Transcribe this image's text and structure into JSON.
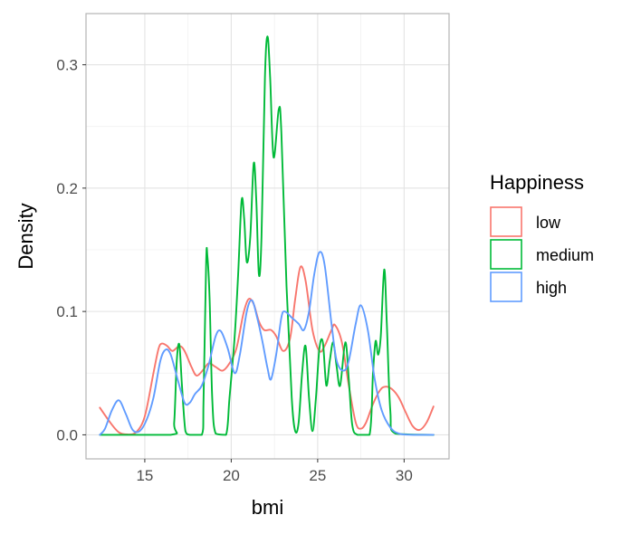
{
  "chart_data": {
    "type": "line",
    "xlabel": "bmi",
    "ylabel": "Density",
    "xlim": [
      11.6,
      32.6
    ],
    "ylim": [
      -0.0195,
      0.3415
    ],
    "x_ticks": [
      15,
      20,
      25,
      30
    ],
    "y_ticks": [
      0.0,
      0.1,
      0.2,
      0.3
    ],
    "x_tick_labels": [
      "15",
      "20",
      "25",
      "30"
    ],
    "y_tick_labels": [
      "0.0",
      "0.1",
      "0.2",
      "0.3"
    ],
    "grid": true,
    "legend": {
      "title": "Happiness",
      "position": "right"
    },
    "series": [
      {
        "name": "low",
        "color": "#F8766D",
        "points": [
          [
            12.4,
            0.022
          ],
          [
            13.0,
            0.01
          ],
          [
            13.5,
            0.002
          ],
          [
            14.0,
            0.0003
          ],
          [
            14.5,
            0.002
          ],
          [
            15.0,
            0.015
          ],
          [
            15.5,
            0.05
          ],
          [
            15.8,
            0.07
          ],
          [
            16.0,
            0.074
          ],
          [
            16.3,
            0.072
          ],
          [
            16.6,
            0.068
          ],
          [
            17.0,
            0.072
          ],
          [
            17.3,
            0.068
          ],
          [
            17.7,
            0.055
          ],
          [
            18.0,
            0.048
          ],
          [
            18.4,
            0.053
          ],
          [
            18.7,
            0.058
          ],
          [
            19.1,
            0.055
          ],
          [
            19.5,
            0.052
          ],
          [
            19.9,
            0.058
          ],
          [
            20.3,
            0.07
          ],
          [
            20.7,
            0.098
          ],
          [
            21.0,
            0.11
          ],
          [
            21.3,
            0.106
          ],
          [
            21.6,
            0.092
          ],
          [
            21.9,
            0.085
          ],
          [
            22.3,
            0.085
          ],
          [
            22.6,
            0.08
          ],
          [
            23.0,
            0.068
          ],
          [
            23.4,
            0.078
          ],
          [
            23.7,
            0.11
          ],
          [
            24.0,
            0.136
          ],
          [
            24.3,
            0.125
          ],
          [
            24.7,
            0.085
          ],
          [
            25.1,
            0.068
          ],
          [
            25.4,
            0.072
          ],
          [
            25.8,
            0.085
          ],
          [
            26.0,
            0.089
          ],
          [
            26.4,
            0.075
          ],
          [
            26.8,
            0.04
          ],
          [
            27.2,
            0.01
          ],
          [
            27.5,
            0.005
          ],
          [
            27.8,
            0.01
          ],
          [
            28.2,
            0.025
          ],
          [
            28.6,
            0.036
          ],
          [
            28.9,
            0.039
          ],
          [
            29.3,
            0.037
          ],
          [
            29.7,
            0.03
          ],
          [
            30.1,
            0.018
          ],
          [
            30.5,
            0.007
          ],
          [
            30.9,
            0.004
          ],
          [
            31.3,
            0.01
          ],
          [
            31.7,
            0.023
          ]
        ]
      },
      {
        "name": "medium",
        "color": "#00BA38",
        "points": [
          [
            12.4,
            0.0
          ],
          [
            16.5,
            0.0
          ],
          [
            16.7,
            0.01
          ],
          [
            16.85,
            0.06
          ],
          [
            17.0,
            0.073
          ],
          [
            17.15,
            0.04
          ],
          [
            17.35,
            0.003
          ],
          [
            17.6,
            0.0
          ],
          [
            18.3,
            0.0
          ],
          [
            18.4,
            0.03
          ],
          [
            18.55,
            0.14
          ],
          [
            18.62,
            0.145
          ],
          [
            18.75,
            0.11
          ],
          [
            18.9,
            0.03
          ],
          [
            19.1,
            0.001
          ],
          [
            19.7,
            0.0
          ],
          [
            19.9,
            0.03
          ],
          [
            20.2,
            0.08
          ],
          [
            20.4,
            0.13
          ],
          [
            20.6,
            0.19
          ],
          [
            20.75,
            0.175
          ],
          [
            20.9,
            0.14
          ],
          [
            21.1,
            0.16
          ],
          [
            21.3,
            0.22
          ],
          [
            21.45,
            0.19
          ],
          [
            21.6,
            0.13
          ],
          [
            21.75,
            0.16
          ],
          [
            21.95,
            0.29
          ],
          [
            22.1,
            0.323
          ],
          [
            22.25,
            0.29
          ],
          [
            22.45,
            0.225
          ],
          [
            22.75,
            0.264
          ],
          [
            22.9,
            0.245
          ],
          [
            23.2,
            0.12
          ],
          [
            23.5,
            0.03
          ],
          [
            23.7,
            0.003
          ],
          [
            23.9,
            0.01
          ],
          [
            24.1,
            0.05
          ],
          [
            24.3,
            0.072
          ],
          [
            24.5,
            0.03
          ],
          [
            24.7,
            0.003
          ],
          [
            24.9,
            0.03
          ],
          [
            25.1,
            0.07
          ],
          [
            25.3,
            0.075
          ],
          [
            25.5,
            0.04
          ],
          [
            25.7,
            0.06
          ],
          [
            25.9,
            0.075
          ],
          [
            26.1,
            0.055
          ],
          [
            26.3,
            0.04
          ],
          [
            26.6,
            0.075
          ],
          [
            26.8,
            0.045
          ],
          [
            27.0,
            0.008
          ],
          [
            27.3,
            0.0
          ],
          [
            28.0,
            0.0
          ],
          [
            28.2,
            0.05
          ],
          [
            28.35,
            0.076
          ],
          [
            28.5,
            0.065
          ],
          [
            28.65,
            0.08
          ],
          [
            28.85,
            0.134
          ],
          [
            29.0,
            0.09
          ],
          [
            29.2,
            0.02
          ],
          [
            29.5,
            0.001
          ],
          [
            31.7,
            0.0
          ]
        ]
      },
      {
        "name": "high",
        "color": "#619CFF",
        "points": [
          [
            12.4,
            0.0
          ],
          [
            12.7,
            0.005
          ],
          [
            13.1,
            0.02
          ],
          [
            13.5,
            0.028
          ],
          [
            13.9,
            0.017
          ],
          [
            14.3,
            0.004
          ],
          [
            14.7,
            0.003
          ],
          [
            15.1,
            0.012
          ],
          [
            15.5,
            0.03
          ],
          [
            15.9,
            0.06
          ],
          [
            16.2,
            0.069
          ],
          [
            16.5,
            0.065
          ],
          [
            16.9,
            0.045
          ],
          [
            17.3,
            0.026
          ],
          [
            17.6,
            0.026
          ],
          [
            17.9,
            0.033
          ],
          [
            18.3,
            0.04
          ],
          [
            18.7,
            0.057
          ],
          [
            19.1,
            0.08
          ],
          [
            19.4,
            0.084
          ],
          [
            19.8,
            0.07
          ],
          [
            20.2,
            0.05
          ],
          [
            20.5,
            0.065
          ],
          [
            20.9,
            0.1
          ],
          [
            21.2,
            0.109
          ],
          [
            21.5,
            0.095
          ],
          [
            21.8,
            0.076
          ],
          [
            22.1,
            0.054
          ],
          [
            22.3,
            0.045
          ],
          [
            22.6,
            0.065
          ],
          [
            22.9,
            0.095
          ],
          [
            23.1,
            0.1
          ],
          [
            23.5,
            0.095
          ],
          [
            23.9,
            0.09
          ],
          [
            24.2,
            0.085
          ],
          [
            24.5,
            0.1
          ],
          [
            24.8,
            0.13
          ],
          [
            25.1,
            0.148
          ],
          [
            25.4,
            0.138
          ],
          [
            25.8,
            0.09
          ],
          [
            26.1,
            0.06
          ],
          [
            26.5,
            0.052
          ],
          [
            26.8,
            0.06
          ],
          [
            27.2,
            0.09
          ],
          [
            27.5,
            0.105
          ],
          [
            27.9,
            0.085
          ],
          [
            28.3,
            0.045
          ],
          [
            28.7,
            0.02
          ],
          [
            29.2,
            0.006
          ],
          [
            29.7,
            0.001
          ],
          [
            30.5,
            0.0
          ],
          [
            31.7,
            0.0
          ]
        ]
      }
    ]
  }
}
